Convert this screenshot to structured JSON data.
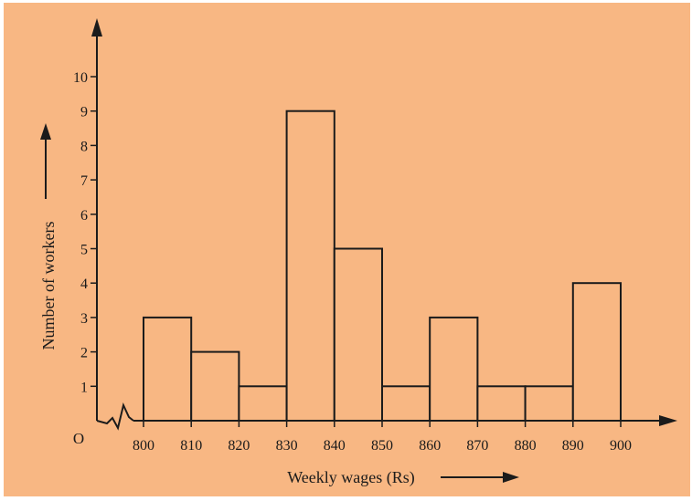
{
  "colors": {
    "background": "#f8b783",
    "bar_fill": "#f8b783",
    "ink": "#1b1b1b"
  },
  "chart_data": {
    "type": "bar",
    "title": "",
    "xlabel": "Weekly wages (Rs)",
    "ylabel": "Number of workers",
    "origin_label": "O",
    "x_ticks": [
      "800",
      "810",
      "820",
      "830",
      "840",
      "850",
      "860",
      "870",
      "880",
      "890",
      "900"
    ],
    "y_ticks": [
      "1",
      "2",
      "3",
      "4",
      "5",
      "6",
      "7",
      "8",
      "9",
      "10"
    ],
    "categories": [
      "800-810",
      "810-820",
      "820-830",
      "830-840",
      "840-850",
      "850-860",
      "860-870",
      "870-880",
      "880-890",
      "890-900"
    ],
    "bins": [
      [
        800,
        810
      ],
      [
        810,
        820
      ],
      [
        820,
        830
      ],
      [
        830,
        840
      ],
      [
        840,
        850
      ],
      [
        850,
        860
      ],
      [
        860,
        870
      ],
      [
        870,
        880
      ],
      [
        880,
        890
      ],
      [
        890,
        900
      ]
    ],
    "values": [
      3,
      2,
      1,
      9,
      5,
      1,
      3,
      1,
      1,
      4
    ],
    "xlim": [
      800,
      900
    ],
    "ylim": [
      0,
      10
    ],
    "axis_break": true,
    "grid": false,
    "legend": "none"
  }
}
